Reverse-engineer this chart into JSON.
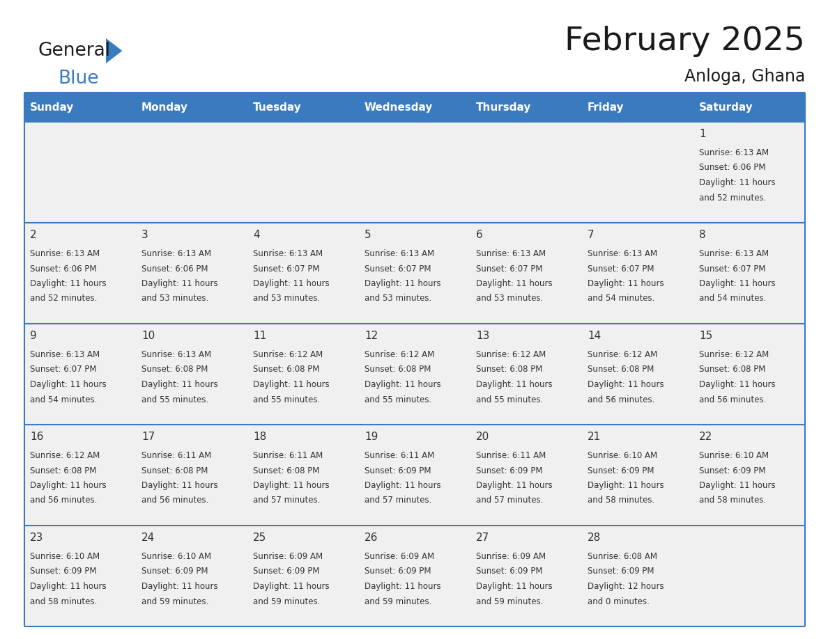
{
  "title": "February 2025",
  "subtitle": "Anloga, Ghana",
  "header_bg_color": "#3a7abf",
  "header_text_color": "#ffffff",
  "cell_bg_color": "#f0f0f0",
  "border_color": "#3a7abf",
  "text_color": "#333333",
  "day_names": [
    "Sunday",
    "Monday",
    "Tuesday",
    "Wednesday",
    "Thursday",
    "Friday",
    "Saturday"
  ],
  "days": [
    {
      "day": 1,
      "col": 6,
      "row": 0,
      "sunrise": "6:13 AM",
      "sunset": "6:06 PM",
      "daylight_hours": 11,
      "daylight_mins": 52
    },
    {
      "day": 2,
      "col": 0,
      "row": 1,
      "sunrise": "6:13 AM",
      "sunset": "6:06 PM",
      "daylight_hours": 11,
      "daylight_mins": 52
    },
    {
      "day": 3,
      "col": 1,
      "row": 1,
      "sunrise": "6:13 AM",
      "sunset": "6:06 PM",
      "daylight_hours": 11,
      "daylight_mins": 53
    },
    {
      "day": 4,
      "col": 2,
      "row": 1,
      "sunrise": "6:13 AM",
      "sunset": "6:07 PM",
      "daylight_hours": 11,
      "daylight_mins": 53
    },
    {
      "day": 5,
      "col": 3,
      "row": 1,
      "sunrise": "6:13 AM",
      "sunset": "6:07 PM",
      "daylight_hours": 11,
      "daylight_mins": 53
    },
    {
      "day": 6,
      "col": 4,
      "row": 1,
      "sunrise": "6:13 AM",
      "sunset": "6:07 PM",
      "daylight_hours": 11,
      "daylight_mins": 53
    },
    {
      "day": 7,
      "col": 5,
      "row": 1,
      "sunrise": "6:13 AM",
      "sunset": "6:07 PM",
      "daylight_hours": 11,
      "daylight_mins": 54
    },
    {
      "day": 8,
      "col": 6,
      "row": 1,
      "sunrise": "6:13 AM",
      "sunset": "6:07 PM",
      "daylight_hours": 11,
      "daylight_mins": 54
    },
    {
      "day": 9,
      "col": 0,
      "row": 2,
      "sunrise": "6:13 AM",
      "sunset": "6:07 PM",
      "daylight_hours": 11,
      "daylight_mins": 54
    },
    {
      "day": 10,
      "col": 1,
      "row": 2,
      "sunrise": "6:13 AM",
      "sunset": "6:08 PM",
      "daylight_hours": 11,
      "daylight_mins": 55
    },
    {
      "day": 11,
      "col": 2,
      "row": 2,
      "sunrise": "6:12 AM",
      "sunset": "6:08 PM",
      "daylight_hours": 11,
      "daylight_mins": 55
    },
    {
      "day": 12,
      "col": 3,
      "row": 2,
      "sunrise": "6:12 AM",
      "sunset": "6:08 PM",
      "daylight_hours": 11,
      "daylight_mins": 55
    },
    {
      "day": 13,
      "col": 4,
      "row": 2,
      "sunrise": "6:12 AM",
      "sunset": "6:08 PM",
      "daylight_hours": 11,
      "daylight_mins": 55
    },
    {
      "day": 14,
      "col": 5,
      "row": 2,
      "sunrise": "6:12 AM",
      "sunset": "6:08 PM",
      "daylight_hours": 11,
      "daylight_mins": 56
    },
    {
      "day": 15,
      "col": 6,
      "row": 2,
      "sunrise": "6:12 AM",
      "sunset": "6:08 PM",
      "daylight_hours": 11,
      "daylight_mins": 56
    },
    {
      "day": 16,
      "col": 0,
      "row": 3,
      "sunrise": "6:12 AM",
      "sunset": "6:08 PM",
      "daylight_hours": 11,
      "daylight_mins": 56
    },
    {
      "day": 17,
      "col": 1,
      "row": 3,
      "sunrise": "6:11 AM",
      "sunset": "6:08 PM",
      "daylight_hours": 11,
      "daylight_mins": 56
    },
    {
      "day": 18,
      "col": 2,
      "row": 3,
      "sunrise": "6:11 AM",
      "sunset": "6:08 PM",
      "daylight_hours": 11,
      "daylight_mins": 57
    },
    {
      "day": 19,
      "col": 3,
      "row": 3,
      "sunrise": "6:11 AM",
      "sunset": "6:09 PM",
      "daylight_hours": 11,
      "daylight_mins": 57
    },
    {
      "day": 20,
      "col": 4,
      "row": 3,
      "sunrise": "6:11 AM",
      "sunset": "6:09 PM",
      "daylight_hours": 11,
      "daylight_mins": 57
    },
    {
      "day": 21,
      "col": 5,
      "row": 3,
      "sunrise": "6:10 AM",
      "sunset": "6:09 PM",
      "daylight_hours": 11,
      "daylight_mins": 58
    },
    {
      "day": 22,
      "col": 6,
      "row": 3,
      "sunrise": "6:10 AM",
      "sunset": "6:09 PM",
      "daylight_hours": 11,
      "daylight_mins": 58
    },
    {
      "day": 23,
      "col": 0,
      "row": 4,
      "sunrise": "6:10 AM",
      "sunset": "6:09 PM",
      "daylight_hours": 11,
      "daylight_mins": 58
    },
    {
      "day": 24,
      "col": 1,
      "row": 4,
      "sunrise": "6:10 AM",
      "sunset": "6:09 PM",
      "daylight_hours": 11,
      "daylight_mins": 59
    },
    {
      "day": 25,
      "col": 2,
      "row": 4,
      "sunrise": "6:09 AM",
      "sunset": "6:09 PM",
      "daylight_hours": 11,
      "daylight_mins": 59
    },
    {
      "day": 26,
      "col": 3,
      "row": 4,
      "sunrise": "6:09 AM",
      "sunset": "6:09 PM",
      "daylight_hours": 11,
      "daylight_mins": 59
    },
    {
      "day": 27,
      "col": 4,
      "row": 4,
      "sunrise": "6:09 AM",
      "sunset": "6:09 PM",
      "daylight_hours": 11,
      "daylight_mins": 59
    },
    {
      "day": 28,
      "col": 5,
      "row": 4,
      "sunrise": "6:08 AM",
      "sunset": "6:09 PM",
      "daylight_hours": 12,
      "daylight_mins": 0
    }
  ],
  "num_rows": 5,
  "num_cols": 7
}
